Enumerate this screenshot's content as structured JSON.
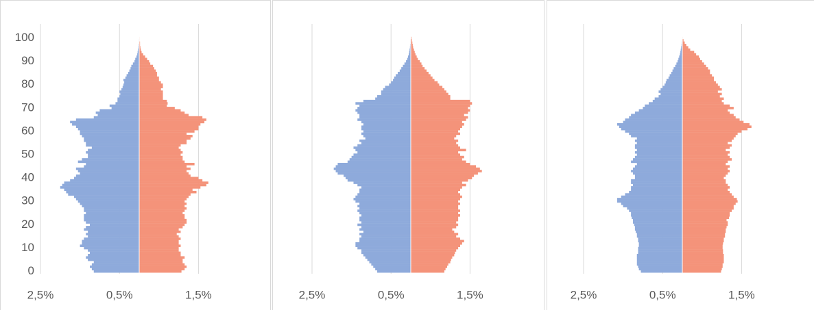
{
  "chart_data": [
    {
      "type": "pyramid",
      "categories": [
        0,
        1,
        2,
        3,
        4,
        5,
        6,
        7,
        8,
        9,
        10,
        11,
        12,
        13,
        14,
        15,
        16,
        17,
        18,
        19,
        20,
        21,
        22,
        23,
        24,
        25,
        26,
        27,
        28,
        29,
        30,
        31,
        32,
        33,
        34,
        35,
        36,
        37,
        38,
        39,
        40,
        41,
        42,
        43,
        44,
        45,
        46,
        47,
        48,
        49,
        50,
        51,
        52,
        53,
        54,
        55,
        56,
        57,
        58,
        59,
        60,
        61,
        62,
        63,
        64,
        65,
        66,
        67,
        68,
        69,
        70,
        71,
        72,
        73,
        74,
        75,
        76,
        77,
        78,
        79,
        80,
        81,
        82,
        83,
        84,
        85,
        86,
        87,
        88,
        89,
        90,
        91,
        92,
        93,
        94,
        95,
        96,
        97,
        98,
        99,
        100
      ],
      "series": [
        {
          "color": "#8eaadb",
          "values": [
            1.15,
            1.2,
            1.25,
            1.2,
            1.15,
            1.3,
            1.35,
            1.3,
            1.25,
            1.3,
            1.4,
            1.5,
            1.45,
            1.45,
            1.4,
            1.3,
            1.35,
            1.3,
            1.4,
            1.35,
            1.25,
            1.35,
            1.4,
            1.4,
            1.4,
            1.35,
            1.4,
            1.4,
            1.45,
            1.5,
            1.55,
            1.6,
            1.65,
            1.8,
            1.85,
            1.9,
            2.0,
            1.95,
            1.9,
            1.75,
            1.65,
            1.6,
            1.5,
            1.55,
            1.6,
            1.4,
            1.35,
            1.55,
            1.45,
            1.3,
            1.3,
            1.35,
            1.3,
            1.2,
            1.35,
            1.35,
            1.4,
            1.4,
            1.45,
            1.5,
            1.5,
            1.55,
            1.6,
            1.7,
            1.75,
            1.6,
            1.15,
            1.05,
            1.1,
            1.0,
            0.7,
            0.75,
            0.6,
            0.55,
            0.55,
            0.5,
            0.48,
            0.5,
            0.45,
            0.42,
            0.4,
            0.38,
            0.4,
            0.35,
            0.32,
            0.28,
            0.25,
            0.22,
            0.2,
            0.16,
            0.12,
            0.1,
            0.07,
            0.05,
            0.04,
            0.03,
            0.02,
            0.015,
            0.01,
            0.01,
            0.005
          ]
        },
        {
          "color": "#f4937a",
          "values": [
            1.07,
            1.15,
            1.2,
            1.15,
            1.1,
            1.1,
            1.15,
            1.05,
            1.05,
            1.0,
            1.0,
            1.05,
            1.0,
            1.0,
            1.05,
            1.0,
            0.95,
            1.05,
            1.0,
            1.1,
            1.15,
            1.2,
            1.2,
            1.15,
            1.15,
            1.1,
            1.15,
            1.2,
            1.15,
            1.2,
            1.15,
            1.2,
            1.25,
            1.3,
            1.45,
            1.35,
            1.55,
            1.7,
            1.75,
            1.6,
            1.5,
            1.3,
            1.25,
            1.2,
            1.3,
            1.2,
            1.4,
            1.15,
            1.1,
            1.1,
            1.05,
            1.1,
            1.05,
            1.0,
            1.05,
            1.2,
            1.2,
            1.3,
            1.35,
            1.2,
            1.4,
            1.5,
            1.5,
            1.55,
            1.65,
            1.7,
            1.6,
            1.25,
            1.15,
            1.05,
            0.9,
            0.7,
            0.72,
            0.7,
            0.6,
            0.6,
            0.6,
            0.6,
            0.55,
            0.6,
            0.6,
            0.55,
            0.5,
            0.5,
            0.45,
            0.45,
            0.42,
            0.38,
            0.35,
            0.28,
            0.25,
            0.2,
            0.15,
            0.1,
            0.06,
            0.04,
            0.03,
            0.02,
            0.02,
            0.01,
            0.01
          ]
        }
      ],
      "xlim": [
        -2.5,
        2.5
      ],
      "xticks": [
        {
          "value": -2.5,
          "label": "2,5%"
        },
        {
          "value": -0.5,
          "label": "0,5%"
        },
        {
          "value": 1.5,
          "label": "1,5%"
        }
      ],
      "ylim": [
        -1,
        106
      ],
      "yticks": [
        0,
        10,
        20,
        30,
        40,
        50,
        60,
        70,
        80,
        90,
        100
      ],
      "grid": true
    },
    {
      "type": "pyramid",
      "categories": [
        0,
        1,
        2,
        3,
        4,
        5,
        6,
        7,
        8,
        9,
        10,
        11,
        12,
        13,
        14,
        15,
        16,
        17,
        18,
        19,
        20,
        21,
        22,
        23,
        24,
        25,
        26,
        27,
        28,
        29,
        30,
        31,
        32,
        33,
        34,
        35,
        36,
        37,
        38,
        39,
        40,
        41,
        42,
        43,
        44,
        45,
        46,
        47,
        48,
        49,
        50,
        51,
        52,
        53,
        54,
        55,
        56,
        57,
        58,
        59,
        60,
        61,
        62,
        63,
        64,
        65,
        66,
        67,
        68,
        69,
        70,
        71,
        72,
        73,
        74,
        75,
        76,
        77,
        78,
        79,
        80,
        81,
        82,
        83,
        84,
        85,
        86,
        87,
        88,
        89,
        90,
        91,
        92,
        93,
        94,
        95,
        96,
        97,
        98,
        99,
        100
      ],
      "series": [
        {
          "color": "#8eaadb",
          "values": [
            0.85,
            0.9,
            0.95,
            1.0,
            1.05,
            1.1,
            1.15,
            1.2,
            1.25,
            1.25,
            1.35,
            1.4,
            1.4,
            1.3,
            1.3,
            1.25,
            1.3,
            1.2,
            1.3,
            1.25,
            1.35,
            1.25,
            1.3,
            1.3,
            1.25,
            1.3,
            1.35,
            1.3,
            1.35,
            1.3,
            1.4,
            1.45,
            1.4,
            1.35,
            1.3,
            1.3,
            1.25,
            1.35,
            1.45,
            1.6,
            1.65,
            1.7,
            1.85,
            1.9,
            1.95,
            1.9,
            1.85,
            1.6,
            1.55,
            1.5,
            1.45,
            1.35,
            1.4,
            1.45,
            1.35,
            1.25,
            1.3,
            1.15,
            1.2,
            1.25,
            1.2,
            1.25,
            1.25,
            1.2,
            1.25,
            1.35,
            1.3,
            1.3,
            1.35,
            1.4,
            1.35,
            1.3,
            1.4,
            1.2,
            0.9,
            0.85,
            0.75,
            0.75,
            0.7,
            0.65,
            0.55,
            0.5,
            0.45,
            0.42,
            0.38,
            0.33,
            0.28,
            0.24,
            0.2,
            0.16,
            0.12,
            0.09,
            0.07,
            0.05,
            0.04,
            0.03,
            0.02,
            0.015,
            0.01,
            0.01,
            0.005
          ]
        },
        {
          "color": "#f4937a",
          "values": [
            0.85,
            0.88,
            0.92,
            0.95,
            1.0,
            1.02,
            1.05,
            1.1,
            1.12,
            1.15,
            1.2,
            1.25,
            1.3,
            1.35,
            1.25,
            1.15,
            1.2,
            1.1,
            1.05,
            1.15,
            1.2,
            1.15,
            1.2,
            1.2,
            1.25,
            1.2,
            1.25,
            1.2,
            1.2,
            1.25,
            1.2,
            1.25,
            1.3,
            1.25,
            1.2,
            1.25,
            1.3,
            1.4,
            1.3,
            1.45,
            1.55,
            1.6,
            1.7,
            1.8,
            1.75,
            1.65,
            1.5,
            1.4,
            1.3,
            1.35,
            1.25,
            1.2,
            1.4,
            1.25,
            1.2,
            1.15,
            1.2,
            1.1,
            1.15,
            1.25,
            1.2,
            1.25,
            1.3,
            1.35,
            1.3,
            1.4,
            1.45,
            1.35,
            1.45,
            1.5,
            1.45,
            1.5,
            1.55,
            1.5,
            1.0,
            1.0,
            0.95,
            0.9,
            0.85,
            0.8,
            0.72,
            0.68,
            0.6,
            0.55,
            0.5,
            0.45,
            0.4,
            0.35,
            0.3,
            0.27,
            0.23,
            0.18,
            0.15,
            0.12,
            0.1,
            0.08,
            0.06,
            0.05,
            0.04,
            0.03,
            0.02
          ]
        }
      ],
      "xlim": [
        -2.5,
        2.5
      ],
      "xticks": [
        {
          "value": -2.5,
          "label": "2,5%"
        },
        {
          "value": -0.5,
          "label": "0,5%"
        },
        {
          "value": 1.5,
          "label": "1,5%"
        }
      ],
      "ylim": [
        -1,
        106
      ],
      "grid": true
    },
    {
      "type": "pyramid",
      "categories": [
        0,
        1,
        2,
        3,
        4,
        5,
        6,
        7,
        8,
        9,
        10,
        11,
        12,
        13,
        14,
        15,
        16,
        17,
        18,
        19,
        20,
        21,
        22,
        23,
        24,
        25,
        26,
        27,
        28,
        29,
        30,
        31,
        32,
        33,
        34,
        35,
        36,
        37,
        38,
        39,
        40,
        41,
        42,
        43,
        44,
        45,
        46,
        47,
        48,
        49,
        50,
        51,
        52,
        53,
        54,
        55,
        56,
        57,
        58,
        59,
        60,
        61,
        62,
        63,
        64,
        65,
        66,
        67,
        68,
        69,
        70,
        71,
        72,
        73,
        74,
        75,
        76,
        77,
        78,
        79,
        80,
        81,
        82,
        83,
        84,
        85,
        86,
        87,
        88,
        89,
        90,
        91,
        92,
        93,
        94,
        95,
        96,
        97,
        98,
        99,
        100
      ],
      "series": [
        {
          "color": "#8eaadb",
          "values": [
            1.05,
            1.1,
            1.12,
            1.15,
            1.15,
            1.15,
            1.15,
            1.15,
            1.12,
            1.12,
            1.12,
            1.1,
            1.1,
            1.12,
            1.12,
            1.15,
            1.15,
            1.18,
            1.2,
            1.2,
            1.22,
            1.25,
            1.25,
            1.28,
            1.3,
            1.3,
            1.35,
            1.4,
            1.5,
            1.55,
            1.65,
            1.65,
            1.55,
            1.45,
            1.35,
            1.3,
            1.3,
            1.25,
            1.3,
            1.3,
            1.2,
            1.2,
            1.25,
            1.3,
            1.25,
            1.2,
            1.15,
            1.3,
            1.25,
            1.2,
            1.15,
            1.2,
            1.15,
            1.2,
            1.2,
            1.15,
            1.2,
            1.15,
            1.3,
            1.35,
            1.45,
            1.55,
            1.6,
            1.65,
            1.5,
            1.45,
            1.35,
            1.3,
            1.2,
            1.1,
            1.0,
            0.95,
            0.85,
            0.75,
            0.7,
            0.6,
            0.55,
            0.6,
            0.55,
            0.5,
            0.45,
            0.42,
            0.4,
            0.35,
            0.32,
            0.28,
            0.25,
            0.22,
            0.18,
            0.15,
            0.12,
            0.1,
            0.08,
            0.06,
            0.05,
            0.04,
            0.03,
            0.02,
            0.015,
            0.01,
            0.005
          ]
        },
        {
          "color": "#f4937a",
          "values": [
            0.98,
            1.0,
            1.02,
            1.02,
            1.05,
            1.05,
            1.05,
            1.05,
            1.03,
            1.03,
            1.02,
            1.02,
            1.03,
            1.05,
            1.05,
            1.08,
            1.08,
            1.1,
            1.1,
            1.12,
            1.15,
            1.15,
            1.12,
            1.18,
            1.2,
            1.2,
            1.25,
            1.3,
            1.3,
            1.35,
            1.4,
            1.38,
            1.3,
            1.25,
            1.2,
            1.15,
            1.2,
            1.15,
            1.1,
            1.1,
            1.05,
            1.1,
            1.15,
            1.2,
            1.15,
            1.2,
            1.1,
            1.15,
            1.25,
            1.2,
            1.15,
            1.2,
            1.1,
            1.2,
            1.25,
            1.15,
            1.25,
            1.3,
            1.35,
            1.4,
            1.5,
            1.65,
            1.75,
            1.7,
            1.55,
            1.45,
            1.35,
            1.3,
            1.2,
            1.15,
            1.3,
            1.2,
            1.05,
            1.0,
            1.05,
            0.95,
            1.0,
            0.9,
            1.0,
            0.95,
            0.9,
            0.85,
            0.8,
            0.8,
            0.75,
            0.7,
            0.7,
            0.65,
            0.6,
            0.55,
            0.5,
            0.45,
            0.42,
            0.35,
            0.3,
            0.2,
            0.15,
            0.1,
            0.06,
            0.03,
            0.01
          ]
        }
      ],
      "xlim": [
        -2.5,
        2.5
      ],
      "xticks": [
        {
          "value": -2.5,
          "label": "2,5%"
        },
        {
          "value": -0.5,
          "label": "0,5%"
        },
        {
          "value": 1.5,
          "label": "1,5%"
        }
      ],
      "ylim": [
        -1,
        106
      ],
      "grid": true
    }
  ]
}
